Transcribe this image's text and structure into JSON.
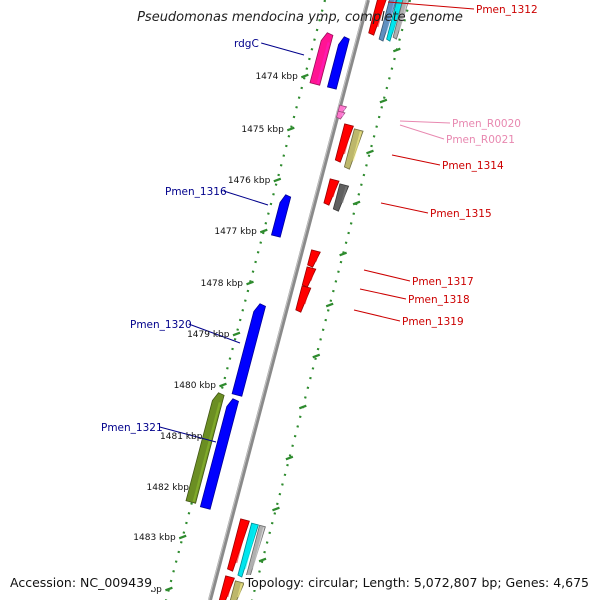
{
  "title": "Pseudomonas mendocina ymp, complete genome",
  "footer": {
    "accession": "Accession: NC_009439",
    "summary": "Topology: circular; Length: 5,072,807 bp; Genes: 4,675"
  },
  "colors": {
    "background": "#ffffff",
    "backbone": "#8a8a8a",
    "ruler_ticks": "#2e8b2e",
    "label_plus": "#00008b",
    "label_minus": "#cc0000",
    "label_rna": "#e888b0",
    "tick_label": "#111111"
  },
  "ruler": {
    "ticks": [
      {
        "label": "1474 kbp"
      },
      {
        "label": "1475 kbp"
      },
      {
        "label": "1476 kbp"
      },
      {
        "label": "1477 kbp"
      },
      {
        "label": "1478 kbp"
      },
      {
        "label": "1479 kbp"
      },
      {
        "label": "1480 kbp"
      },
      {
        "label": "1481 kbp"
      },
      {
        "label": "1482 kbp"
      },
      {
        "label": "1483 kbp"
      },
      {
        "label": "bp"
      }
    ]
  },
  "genes": [
    {
      "name": "Pmen_1312",
      "strand": "minus",
      "color": "#ff0000"
    },
    {
      "name": "",
      "strand": "minus",
      "color": "#5f8fbf"
    },
    {
      "name": "",
      "strand": "minus",
      "color": "#00e5ee"
    },
    {
      "name": "",
      "strand": "minus",
      "color": "#b0b0b0"
    },
    {
      "name": "",
      "strand": "plus",
      "color": "#ff1493"
    },
    {
      "name": "rdgC",
      "strand": "plus",
      "color": "#0000ff"
    },
    {
      "name": "Pmen_R0020",
      "strand": "minus",
      "color": "#ff77cc"
    },
    {
      "name": "Pmen_R0021",
      "strand": "minus",
      "color": "#ff77cc"
    },
    {
      "name": "Pmen_1314",
      "strand": "minus",
      "color": "#ff0000"
    },
    {
      "name": "",
      "strand": "minus",
      "color": "#bdb76b"
    },
    {
      "name": "",
      "strand": "minus",
      "color": "#ff0000"
    },
    {
      "name": "Pmen_1315",
      "strand": "minus",
      "color": "#606060"
    },
    {
      "name": "Pmen_1316",
      "strand": "plus",
      "color": "#0000ff"
    },
    {
      "name": "Pmen_1317",
      "strand": "minus",
      "color": "#ff0000"
    },
    {
      "name": "Pmen_1318",
      "strand": "minus",
      "color": "#ff0000"
    },
    {
      "name": "Pmen_1319",
      "strand": "minus",
      "color": "#ff0000"
    },
    {
      "name": "Pmen_1320",
      "strand": "plus",
      "color": "#0000ff"
    },
    {
      "name": "",
      "strand": "plus",
      "color": "#6b8e23"
    },
    {
      "name": "Pmen_1321",
      "strand": "plus",
      "color": "#0000ff"
    },
    {
      "name": "",
      "strand": "minus",
      "color": "#ff0000"
    },
    {
      "name": "",
      "strand": "minus",
      "color": "#00e5ee"
    },
    {
      "name": "",
      "strand": "minus",
      "color": "#b0b0b0"
    },
    {
      "name": "",
      "strand": "minus",
      "color": "#ff0000"
    },
    {
      "name": "",
      "strand": "minus",
      "color": "#bdb76b"
    }
  ]
}
